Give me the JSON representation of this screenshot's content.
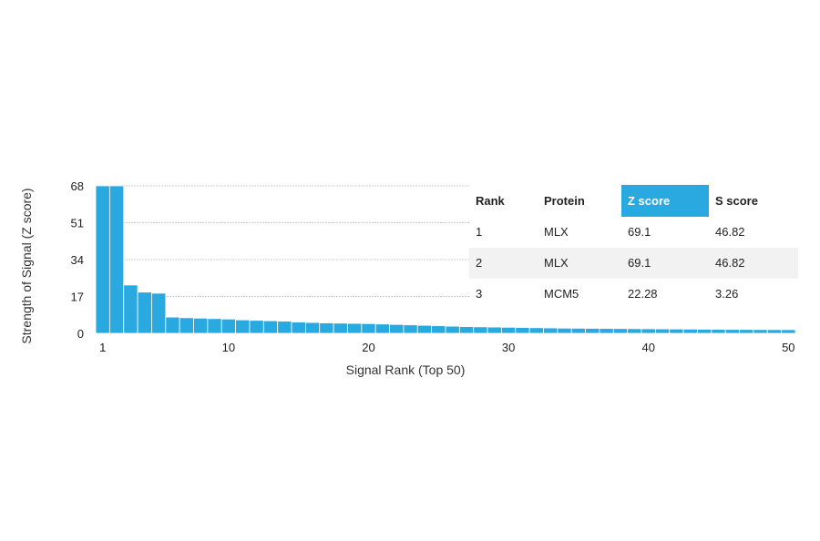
{
  "chart_data": {
    "type": "bar",
    "xlabel": "Signal Rank (Top 50)",
    "ylabel": "Strength of Signal (Z score)",
    "ylim": [
      0,
      68
    ],
    "yticks": [
      0,
      17,
      34,
      51,
      68
    ],
    "xticks": [
      1,
      10,
      20,
      30,
      40,
      50
    ],
    "xlim": [
      1,
      50
    ],
    "grid": "horizontal",
    "bar_color": "#29a9df",
    "x": [
      1,
      2,
      3,
      4,
      5,
      6,
      7,
      8,
      9,
      10,
      11,
      12,
      13,
      14,
      15,
      16,
      17,
      18,
      19,
      20,
      21,
      22,
      23,
      24,
      25,
      26,
      27,
      28,
      29,
      30,
      31,
      32,
      33,
      34,
      35,
      36,
      37,
      38,
      39,
      40,
      41,
      42,
      43,
      44,
      45,
      46,
      47,
      48,
      49,
      50
    ],
    "values": [
      69.1,
      69.1,
      22.28,
      19,
      18.5,
      7.5,
      7.2,
      7,
      6.8,
      6.6,
      6.2,
      6,
      5.8,
      5.6,
      5.2,
      5,
      4.8,
      4.7,
      4.6,
      4.5,
      4.3,
      4.1,
      3.9,
      3.7,
      3.5,
      3.3,
      3.1,
      3,
      2.9,
      2.8,
      2.7,
      2.6,
      2.5,
      2.4,
      2.35,
      2.3,
      2.25,
      2.2,
      2.15,
      2.1,
      2.05,
      2,
      1.95,
      1.9,
      1.85,
      1.8,
      1.78,
      1.75,
      1.72,
      1.7
    ]
  },
  "table": {
    "highlight_color": "#29a9df",
    "headers": [
      "Rank",
      "Protein",
      "Z score",
      "S score"
    ],
    "highlight_col": 2,
    "rows": [
      [
        "1",
        "MLX",
        "69.1",
        "46.82"
      ],
      [
        "2",
        "MLX",
        "69.1",
        "46.82"
      ],
      [
        "3",
        "MCM5",
        "22.28",
        "3.26"
      ]
    ]
  }
}
